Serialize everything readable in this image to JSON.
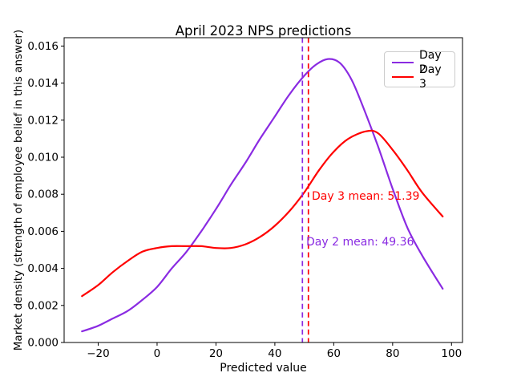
{
  "title": "April 2023 NPS predictions",
  "chart_data": {
    "type": "line",
    "title": "April 2023 NPS predictions",
    "xlabel": "Predicted value",
    "ylabel": "Market density (strength of employee belief in this answer)",
    "xlim": [
      -31.57,
      103.73
    ],
    "ylim": [
      0,
      0.01645
    ],
    "grid": false,
    "xticks": [
      -20,
      0,
      20,
      40,
      60,
      80,
      100
    ],
    "xticklabels": [
      "−20",
      "0",
      "20",
      "40",
      "60",
      "80",
      "100"
    ],
    "yticks": [
      0.0,
      0.002,
      0.004,
      0.006,
      0.008,
      0.01,
      0.012,
      0.014,
      0.016
    ],
    "yticklabels": [
      "0.000",
      "0.002",
      "0.004",
      "0.006",
      "0.008",
      "0.010",
      "0.012",
      "0.014",
      "0.016"
    ],
    "series": [
      {
        "name": "Day 2",
        "color": "#8a2be2",
        "mean": 49.36,
        "x": [
          -25.5,
          -20,
          -15,
          -10,
          -5,
          0,
          5,
          10,
          15,
          20,
          25,
          30,
          35,
          40,
          45,
          50,
          54,
          58,
          62,
          66,
          70,
          75,
          80,
          85,
          90,
          97
        ],
        "y": [
          0.0006,
          0.0009,
          0.0013,
          0.0017,
          0.0023,
          0.003,
          0.004,
          0.0049,
          0.006,
          0.0072,
          0.0085,
          0.0097,
          0.011,
          0.0122,
          0.0134,
          0.0144,
          0.015,
          0.0153,
          0.0151,
          0.0142,
          0.0127,
          0.0106,
          0.0083,
          0.0062,
          0.0047,
          0.0029
        ]
      },
      {
        "name": "Day 3",
        "color": "#ff0000",
        "mean": 51.39,
        "x": [
          -25.5,
          -20,
          -15,
          -10,
          -5,
          0,
          5,
          10,
          15,
          20,
          25,
          30,
          35,
          40,
          45,
          50,
          55,
          60,
          65,
          71,
          75,
          80,
          85,
          90,
          97
        ],
        "y": [
          0.0025,
          0.0031,
          0.0038,
          0.0044,
          0.0049,
          0.0051,
          0.0052,
          0.0052,
          0.0052,
          0.0051,
          0.0051,
          0.0053,
          0.0057,
          0.0063,
          0.0071,
          0.0081,
          0.0093,
          0.0103,
          0.011,
          0.0114,
          0.0113,
          0.0104,
          0.0093,
          0.0081,
          0.0068
        ]
      }
    ],
    "vlines": [
      {
        "x": 49.36,
        "color": "#8a2be2",
        "style": "dashed"
      },
      {
        "x": 51.39,
        "color": "#ff0000",
        "style": "dashed"
      }
    ],
    "annotations": [
      {
        "text": "Day 3 mean: 51.39",
        "color": "#ff0000",
        "x": 52.6,
        "y": 0.0079
      },
      {
        "text": "Day 2 mean: 49.36",
        "color": "#8a2be2",
        "x": 50.6,
        "y": 0.0054
      }
    ],
    "legend": {
      "position": "upper right",
      "entries": [
        {
          "label": "Day 2",
          "color": "#8a2be2"
        },
        {
          "label": "Day 3",
          "color": "#ff0000"
        }
      ]
    }
  }
}
